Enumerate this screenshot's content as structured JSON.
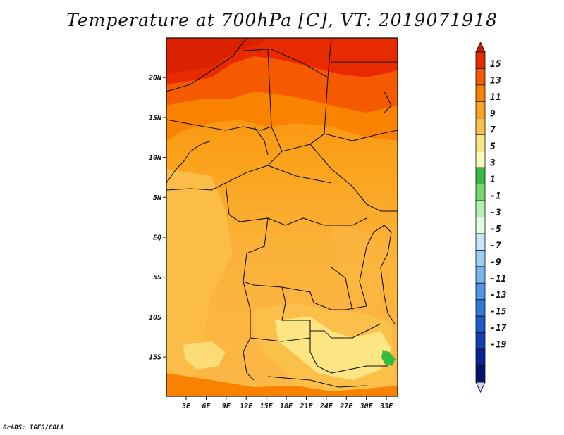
{
  "title": "Temperature at 700hPa [C], VT: 2019071918",
  "credit": "GrADS: IGES/COLA",
  "map": {
    "lat_ticks": [
      {
        "label": "20N",
        "value": 20
      },
      {
        "label": "15N",
        "value": 15
      },
      {
        "label": "10N",
        "value": 10
      },
      {
        "label": "5N",
        "value": 5
      },
      {
        "label": "EQ",
        "value": 0
      },
      {
        "label": "5S",
        "value": -5
      },
      {
        "label": "10S",
        "value": -10
      },
      {
        "label": "15S",
        "value": -15
      }
    ],
    "lon_ticks": [
      {
        "label": "3E",
        "value": 3
      },
      {
        "label": "6E",
        "value": 6
      },
      {
        "label": "9E",
        "value": 9
      },
      {
        "label": "12E",
        "value": 12
      },
      {
        "label": "15E",
        "value": 15
      },
      {
        "label": "18E",
        "value": 18
      },
      {
        "label": "21E",
        "value": 21
      },
      {
        "label": "24E",
        "value": 24
      },
      {
        "label": "27E",
        "value": 27
      },
      {
        "label": "30E",
        "value": 30
      },
      {
        "label": "33E",
        "value": 33
      }
    ]
  },
  "colorbar": {
    "labels": [
      "15",
      "13",
      "11",
      "9",
      "7",
      "5",
      "3",
      "1",
      "-1",
      "-3",
      "-5",
      "-7",
      "-9",
      "-11",
      "-13",
      "-15",
      "-17",
      "-19"
    ],
    "colors": [
      "#e82a00",
      "#f55a00",
      "#f98200",
      "#faa31c",
      "#fbc04a",
      "#fde583",
      "#fcfcb8",
      "#36bb3f",
      "#74d96a",
      "#b4f0ae",
      "#e3fbe7",
      "#c8e6fa",
      "#9ccff5",
      "#76b6ef",
      "#4f98e8",
      "#3079dc",
      "#1d5ccc",
      "#1240b3",
      "#0a2296",
      "#071170"
    ],
    "top_cap_color": "#c81e00",
    "bottom_cap_color": "#d8d6f6"
  }
}
